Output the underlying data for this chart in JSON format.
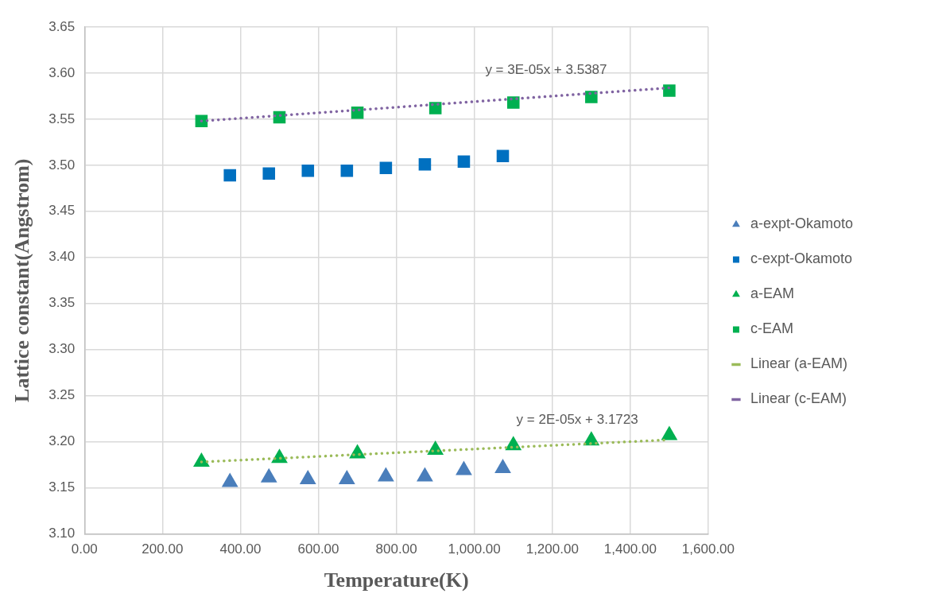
{
  "chart_data": {
    "type": "scatter",
    "xlabel": "Temperature(K)",
    "ylabel": "Lattice constant(Angstrom)",
    "xlim": [
      0,
      1600
    ],
    "xticks": [
      {
        "value": 0,
        "label": "0.00"
      },
      {
        "value": 200,
        "label": "200.00"
      },
      {
        "value": 400,
        "label": "400.00"
      },
      {
        "value": 600,
        "label": "600.00"
      },
      {
        "value": 800,
        "label": "800.00"
      },
      {
        "value": 1000,
        "label": "1,000.00"
      },
      {
        "value": 1200,
        "label": "1,200.00"
      },
      {
        "value": 1400,
        "label": "1,400.00"
      },
      {
        "value": 1600,
        "label": "1,600.00"
      }
    ],
    "ylim": [
      3.1,
      3.65
    ],
    "yticks": [
      {
        "value": 3.1,
        "label": "3.10"
      },
      {
        "value": 3.15,
        "label": "3.15"
      },
      {
        "value": 3.2,
        "label": "3.20"
      },
      {
        "value": 3.25,
        "label": "3.25"
      },
      {
        "value": 3.3,
        "label": "3.30"
      },
      {
        "value": 3.35,
        "label": "3.35"
      },
      {
        "value": 3.4,
        "label": "3.40"
      },
      {
        "value": 3.45,
        "label": "3.45"
      },
      {
        "value": 3.5,
        "label": "3.50"
      },
      {
        "value": 3.55,
        "label": "3.55"
      },
      {
        "value": 3.6,
        "label": "3.60"
      },
      {
        "value": 3.65,
        "label": "3.65"
      }
    ],
    "grid": true,
    "legend": "right",
    "series": [
      {
        "name": "a-expt-Okamoto",
        "marker": "triangle",
        "color": "#4a7ebb",
        "x": [
          373,
          473,
          573,
          673,
          773,
          873,
          973,
          1073
        ],
        "values": [
          3.156,
          3.161,
          3.159,
          3.159,
          3.162,
          3.162,
          3.169,
          3.171
        ]
      },
      {
        "name": "c-expt-Okamoto",
        "marker": "square",
        "color": "#0070c0",
        "x": [
          373,
          473,
          573,
          673,
          773,
          873,
          973,
          1073
        ],
        "values": [
          3.489,
          3.491,
          3.494,
          3.494,
          3.497,
          3.501,
          3.504,
          3.51
        ]
      },
      {
        "name": "a-EAM",
        "marker": "triangle",
        "color": "#00b050",
        "x": [
          300,
          500,
          700,
          900,
          1100,
          1300,
          1500
        ],
        "values": [
          3.178,
          3.182,
          3.187,
          3.191,
          3.196,
          3.201,
          3.207
        ]
      },
      {
        "name": "c-EAM",
        "marker": "square",
        "color": "#00b050",
        "x": [
          300,
          500,
          700,
          900,
          1100,
          1300,
          1500
        ],
        "values": [
          3.548,
          3.552,
          3.557,
          3.562,
          3.568,
          3.574,
          3.581
        ]
      },
      {
        "name": "Linear (a-EAM)",
        "type": "line",
        "marker": "none",
        "line_style": "dotted",
        "color": "#9bbb59",
        "x": [
          300,
          1500
        ],
        "values": [
          3.178,
          3.202
        ]
      },
      {
        "name": "Linear (c-EAM)",
        "type": "line",
        "marker": "none",
        "line_style": "dotted",
        "color": "#8064a2",
        "x": [
          300,
          1500
        ],
        "values": [
          3.548,
          3.584
        ]
      }
    ],
    "annotations": [
      "y = 3E-05x + 3.5387",
      "y = 2E-05x + 3.1723"
    ]
  }
}
